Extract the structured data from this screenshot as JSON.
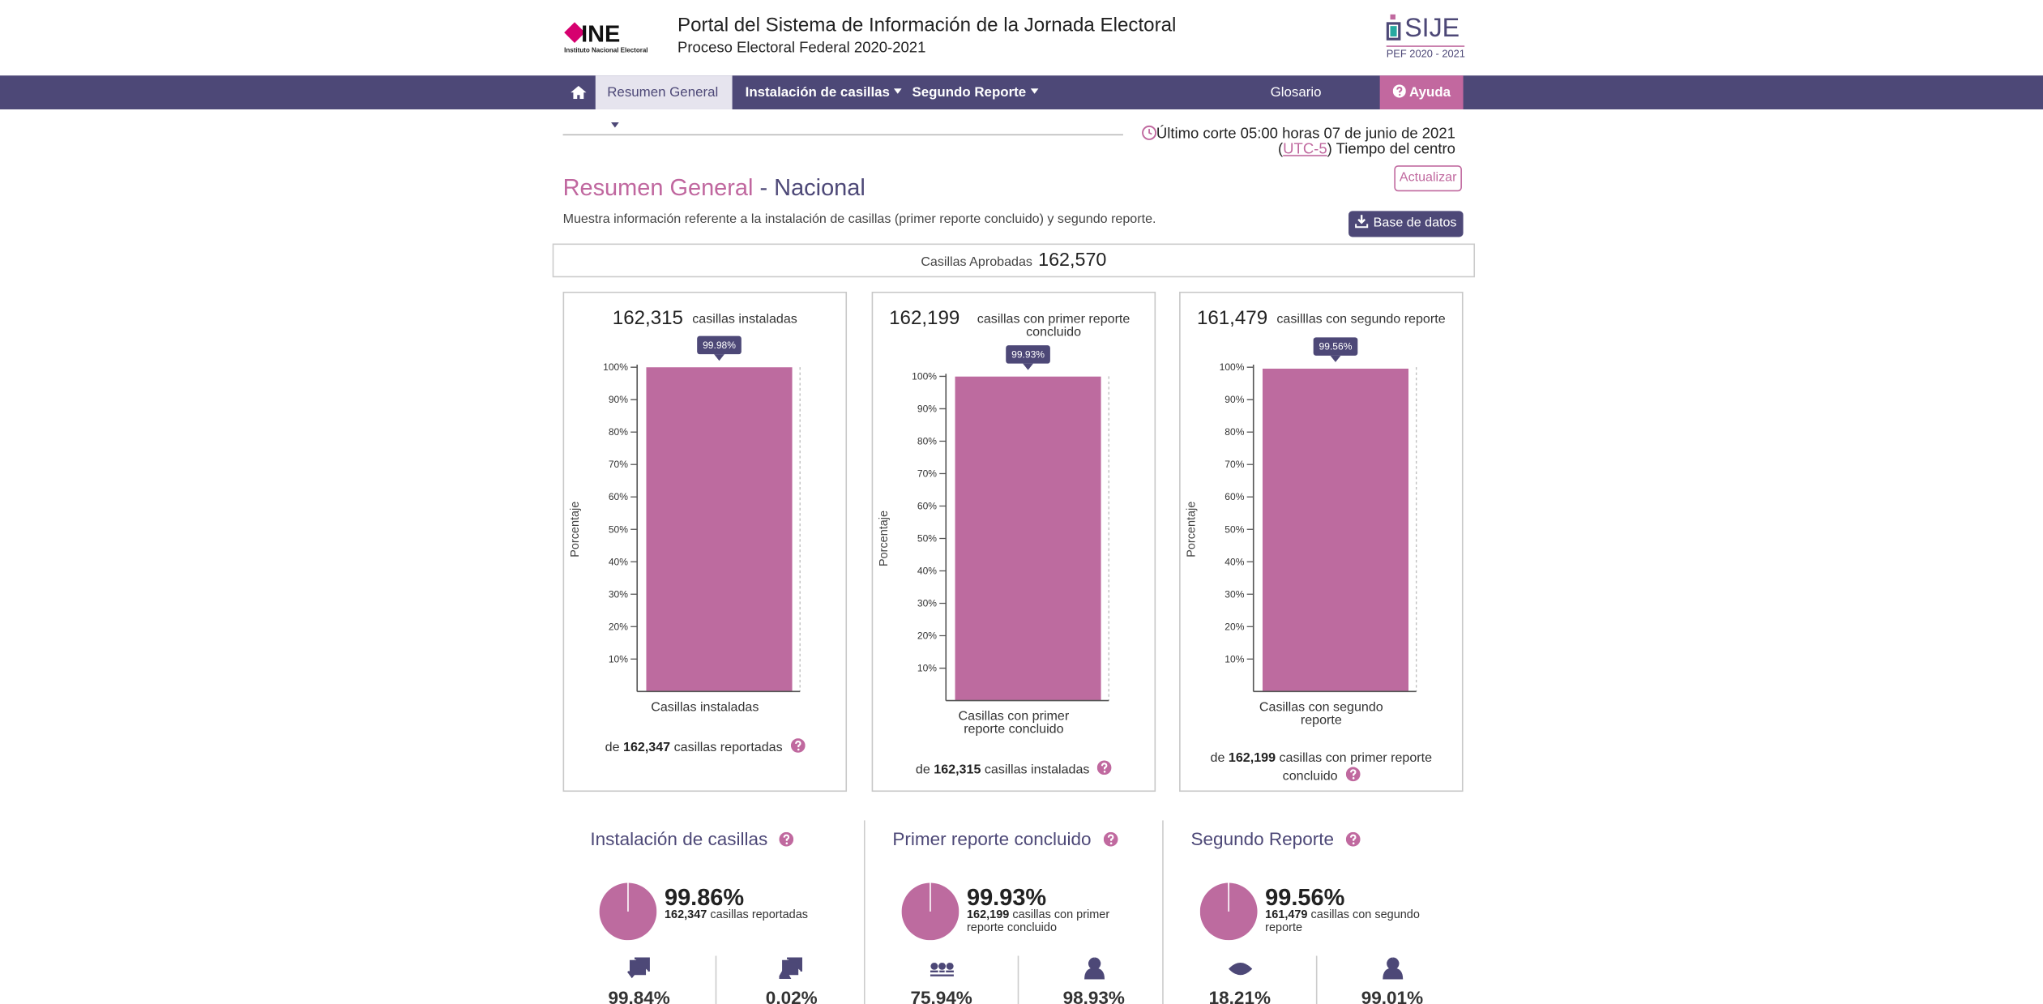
{
  "header": {
    "logo": "INE",
    "logo_sub": "Instituto Nacional Electoral",
    "title": "Portal del Sistema de Información de la Jornada Electoral",
    "subtitle": "Proceso Electoral Federal 2020-2021",
    "brand": "SIJE",
    "brand_sub": "PEF 2020 - 2021"
  },
  "nav": {
    "items": [
      "Resumen General",
      "Instalación de casillas",
      "Segundo Reporte"
    ],
    "glossary": "Glosario",
    "help": "Ayuda"
  },
  "cutoff": {
    "text": "Último corte 05:00 horas 07 de junio de 2021",
    "open": "(",
    "utc": "UTC-5",
    "zone": ") Tiempo del centro"
  },
  "refresh": "Actualizar",
  "page": {
    "title": "Resumen General",
    "scope": "- Nacional",
    "description": "Muestra información referente a la instalación de casillas (primer reporte concluido) y segundo reporte.",
    "download": "Base de datos"
  },
  "approved": {
    "label": "Casillas Aprobadas",
    "value": "162,570"
  },
  "chart_data": [
    {
      "type": "bar",
      "total": "162,315",
      "total_text": "casillas instaladas",
      "y_label": "Porcentaje",
      "categories": [
        "Casillas instaladas"
      ],
      "values": [
        99.98
      ],
      "value_labels": [
        "99.98%"
      ],
      "color": "#bd6b9f",
      "ylim": [
        0,
        100
      ],
      "yticks": [
        {
          "value": 10,
          "label": "10%"
        },
        {
          "value": 20,
          "label": "20%"
        },
        {
          "value": 30,
          "label": "30%"
        },
        {
          "value": 40,
          "label": "40%"
        },
        {
          "value": 50,
          "label": "50%"
        },
        {
          "value": 60,
          "label": "60%"
        },
        {
          "value": 70,
          "label": "70%"
        },
        {
          "value": 80,
          "label": "80%"
        },
        {
          "value": 90,
          "label": "90%"
        },
        {
          "value": 100,
          "label": "100%"
        }
      ],
      "footer_prefix": "de",
      "footer_total": "162,347",
      "footer_text": "casillas reportadas"
    },
    {
      "type": "bar",
      "total": "162,199",
      "total_text": "casillas con primer reporte concluido",
      "y_label": "Porcentaje",
      "categories": [
        "Casillas con primer reporte concluido"
      ],
      "values": [
        99.93
      ],
      "value_labels": [
        "99.93%"
      ],
      "color": "#bd6b9f",
      "ylim": [
        0,
        100
      ],
      "yticks": [
        {
          "value": 10,
          "label": "10%"
        },
        {
          "value": 20,
          "label": "20%"
        },
        {
          "value": 30,
          "label": "30%"
        },
        {
          "value": 40,
          "label": "40%"
        },
        {
          "value": 50,
          "label": "50%"
        },
        {
          "value": 60,
          "label": "60%"
        },
        {
          "value": 70,
          "label": "70%"
        },
        {
          "value": 80,
          "label": "80%"
        },
        {
          "value": 90,
          "label": "90%"
        },
        {
          "value": 100,
          "label": "100%"
        }
      ],
      "footer_prefix": "de",
      "footer_total": "162,315",
      "footer_text": "casillas instaladas"
    },
    {
      "type": "bar",
      "total": "161,479",
      "total_text": "casilllas con segundo reporte",
      "y_label": "Porcentaje",
      "categories": [
        "Casillas con segundo reporte"
      ],
      "values": [
        99.56
      ],
      "value_labels": [
        "99.56%"
      ],
      "color": "#bd6b9f",
      "ylim": [
        0,
        100
      ],
      "yticks": [
        {
          "value": 10,
          "label": "10%"
        },
        {
          "value": 20,
          "label": "20%"
        },
        {
          "value": 30,
          "label": "30%"
        },
        {
          "value": 40,
          "label": "40%"
        },
        {
          "value": 50,
          "label": "50%"
        },
        {
          "value": 60,
          "label": "60%"
        },
        {
          "value": 70,
          "label": "70%"
        },
        {
          "value": 80,
          "label": "80%"
        },
        {
          "value": 90,
          "label": "90%"
        },
        {
          "value": 100,
          "label": "100%"
        }
      ],
      "footer_prefix": "de",
      "footer_total": "162,199",
      "footer_text": "casillas con primer reporte concluido"
    }
  ],
  "summary": [
    {
      "title": "Instalación de casillas",
      "pct": 99.86,
      "pct_label": "99.86%",
      "count": "162,347",
      "count_text": "casillas reportadas",
      "stats": [
        "99.84%",
        "0.02%"
      ]
    },
    {
      "title": "Primer reporte concluido",
      "pct": 99.93,
      "pct_label": "99.93%",
      "count": "162,199",
      "count_text": "casillas con primer reporte concluido",
      "stats": [
        "75.94%",
        "98.93%"
      ]
    },
    {
      "title": "Segundo Reporte",
      "pct": 99.56,
      "pct_label": "99.56%",
      "count": "161,479",
      "count_text": "casillas con segundo reporte",
      "stats": [
        "18.21%",
        "99.01%"
      ]
    }
  ]
}
